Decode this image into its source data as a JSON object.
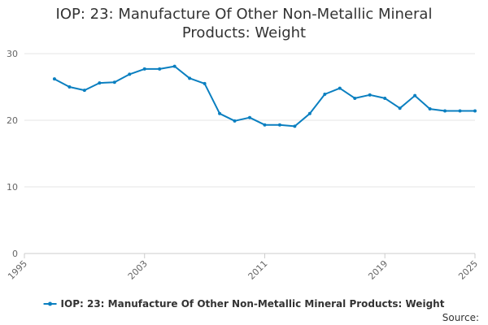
{
  "chart_data": {
    "type": "line",
    "title_line1": "IOP: 23: Manufacture Of Other Non-Metallic Mineral",
    "title_line2": "Products: Weight",
    "xlabel": "",
    "ylabel": "",
    "xlim": [
      1995,
      2025
    ],
    "ylim": [
      0,
      30
    ],
    "x_ticks": [
      "1995",
      "2003",
      "2011",
      "2019",
      "2025"
    ],
    "y_ticks": [
      "0",
      "10",
      "20",
      "30"
    ],
    "grid": true,
    "legend_position": "bottom-center",
    "series": [
      {
        "name": "IOP: 23: Manufacture Of Other Non-Metallic Mineral Products: Weight",
        "color": "#0a7fc0",
        "x": [
          1997,
          1998,
          1999,
          2000,
          2001,
          2002,
          2003,
          2004,
          2005,
          2006,
          2007,
          2008,
          2009,
          2010,
          2011,
          2012,
          2013,
          2014,
          2015,
          2016,
          2017,
          2018,
          2019,
          2020,
          2021,
          2022,
          2023,
          2024,
          2025
        ],
        "values": [
          26.2,
          25.0,
          24.5,
          25.6,
          25.7,
          26.9,
          27.7,
          27.7,
          28.1,
          26.3,
          25.5,
          21.0,
          19.9,
          20.4,
          19.3,
          19.3,
          19.1,
          21.0,
          23.9,
          24.8,
          23.3,
          23.8,
          23.3,
          21.8,
          23.7,
          21.7,
          21.4,
          21.4,
          21.4
        ]
      }
    ],
    "source_label": "Source:"
  }
}
